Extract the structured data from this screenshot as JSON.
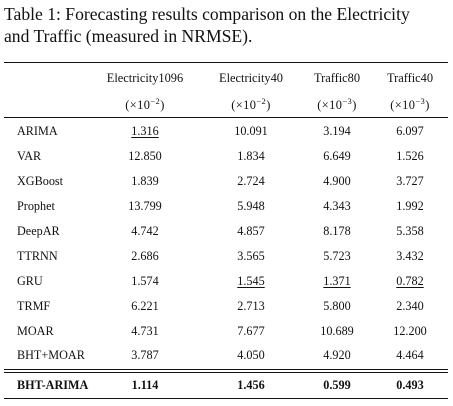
{
  "caption": {
    "line1": "Table 1: Forecasting results comparison on the Electricity",
    "line2": "and Traffic (measured in NRMSE)."
  },
  "columns": [
    {
      "name": "Electricity1096",
      "unit_base": "(×10",
      "unit_exp": "−2",
      "unit_end": ")"
    },
    {
      "name": "Electricity40",
      "unit_base": "(×10",
      "unit_exp": "−2",
      "unit_end": ")"
    },
    {
      "name": "Traffic80",
      "unit_base": "(×10",
      "unit_exp": "−3",
      "unit_end": ")"
    },
    {
      "name": "Traffic40",
      "unit_base": "(×10",
      "unit_exp": "−3",
      "unit_end": ")"
    }
  ],
  "rows": [
    {
      "model": "ARIMA",
      "values": [
        "1.316",
        "10.091",
        "3.194",
        "6.097"
      ],
      "underline": [
        0
      ]
    },
    {
      "model": "VAR",
      "values": [
        "12.850",
        "1.834",
        "6.649",
        "1.526"
      ],
      "underline": []
    },
    {
      "model": "XGBoost",
      "values": [
        "1.839",
        "2.724",
        "4.900",
        "3.727"
      ],
      "underline": []
    },
    {
      "model": "Prophet",
      "values": [
        "13.799",
        "5.948",
        "4.343",
        "1.992"
      ],
      "underline": []
    },
    {
      "model": "DeepAR",
      "values": [
        "4.742",
        "4.857",
        "8.178",
        "5.358"
      ],
      "underline": []
    },
    {
      "model": "TTRNN",
      "values": [
        "2.686",
        "3.565",
        "5.723",
        "3.432"
      ],
      "underline": []
    },
    {
      "model": "GRU",
      "values": [
        "1.574",
        "1.545",
        "1.371",
        "0.782"
      ],
      "underline": [
        1,
        2,
        3
      ]
    },
    {
      "model": "TRMF",
      "values": [
        "6.221",
        "2.713",
        "5.800",
        "2.340"
      ],
      "underline": []
    },
    {
      "model": "MOAR",
      "values": [
        "4.731",
        "7.677",
        "10.689",
        "12.200"
      ],
      "underline": []
    },
    {
      "model": "BHT+MOAR",
      "values": [
        "3.787",
        "4.050",
        "4.920",
        "4.464"
      ],
      "underline": []
    }
  ],
  "final_row": {
    "model": "BHT-ARIMA",
    "values": [
      "1.114",
      "1.456",
      "0.599",
      "0.493"
    ]
  }
}
